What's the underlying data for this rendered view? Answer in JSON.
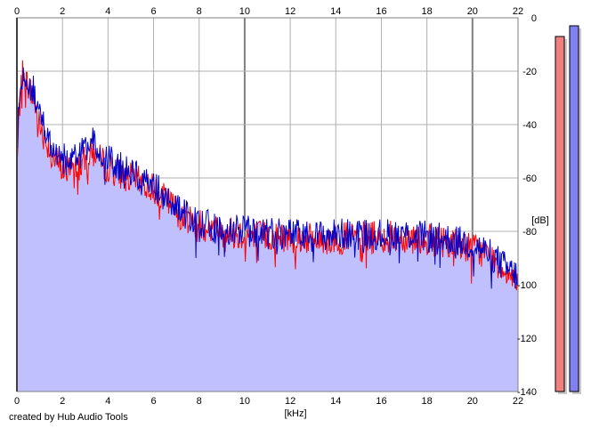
{
  "chart_data": {
    "type": "area",
    "xlabel": "[kHz]",
    "ylabel": "[dB]",
    "xlim": [
      0,
      22
    ],
    "ylim": [
      -140,
      0
    ],
    "x_ticks": [
      0,
      2,
      4,
      6,
      8,
      10,
      12,
      14,
      16,
      18,
      20,
      22
    ],
    "y_ticks": [
      0,
      -20,
      -40,
      -60,
      -80,
      -100,
      -120,
      -140
    ],
    "grid": true,
    "series": [
      {
        "color": "#ff0000",
        "x": [
          0,
          0.1,
          0.2,
          0.3,
          0.5,
          0.8,
          1.0,
          1.3,
          1.6,
          2.0,
          2.5,
          3.0,
          3.3,
          3.6,
          4.0,
          4.5,
          5.0,
          5.5,
          6.0,
          6.5,
          7.0,
          7.5,
          8.0,
          8.5,
          9.0,
          10.0,
          11.0,
          12.0,
          13.0,
          14.0,
          15.0,
          16.0,
          17.0,
          18.0,
          19.0,
          20.0,
          20.5,
          21.0,
          21.5,
          22.0
        ],
        "values": [
          -58,
          -35,
          -22,
          -20,
          -26,
          -32,
          -40,
          -46,
          -52,
          -57,
          -56,
          -54,
          -50,
          -53,
          -56,
          -58,
          -60,
          -62,
          -64,
          -68,
          -72,
          -75,
          -77,
          -79,
          -80,
          -81,
          -82,
          -82,
          -83,
          -83,
          -82,
          -82,
          -82,
          -83,
          -84,
          -86,
          -88,
          -91,
          -95,
          -98
        ],
        "fill": "#c0c0ff"
      },
      {
        "color": "#0000cc",
        "x": [
          0,
          0.1,
          0.2,
          0.3,
          0.5,
          0.8,
          1.0,
          1.3,
          1.6,
          2.0,
          2.5,
          3.0,
          3.3,
          3.6,
          4.0,
          4.5,
          5.0,
          5.5,
          6.0,
          6.5,
          7.0,
          7.5,
          8.0,
          8.5,
          9.0,
          10.0,
          11.0,
          12.0,
          13.0,
          14.0,
          15.0,
          16.0,
          17.0,
          18.0,
          19.0,
          20.0,
          20.5,
          21.0,
          21.5,
          22.0
        ],
        "values": [
          -52,
          -30,
          -20,
          -18,
          -23,
          -29,
          -37,
          -44,
          -50,
          -53,
          -52,
          -50,
          -46,
          -50,
          -53,
          -56,
          -58,
          -60,
          -63,
          -67,
          -71,
          -74,
          -77,
          -78,
          -79,
          -80,
          -81,
          -81,
          -82,
          -81,
          -81,
          -81,
          -81,
          -82,
          -83,
          -85,
          -87,
          -90,
          -94,
          -97
        ]
      }
    ],
    "level_meters": [
      {
        "color": "#f08080",
        "level_db": -7
      },
      {
        "color": "#8080f0",
        "level_db": -3
      }
    ]
  },
  "credit_text": "created by Hub Audio Tools"
}
